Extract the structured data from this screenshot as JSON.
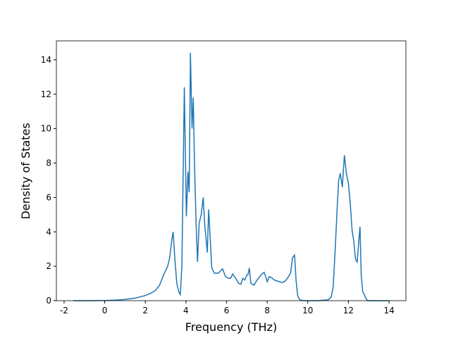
{
  "chart_data": {
    "type": "line",
    "x_label": "Frequency (THz)",
    "y_label": "Density of States",
    "x": [
      -1.55,
      -1,
      0,
      0.5,
      1,
      1.5,
      2,
      2.3,
      2.5,
      2.7,
      2.9,
      3.1,
      3.2,
      3.3,
      3.37,
      3.45,
      3.55,
      3.65,
      3.72,
      3.8,
      3.92,
      4.02,
      4.1,
      4.16,
      4.22,
      4.3,
      4.36,
      4.42,
      4.5,
      4.57,
      4.65,
      4.75,
      4.85,
      4.92,
      5.05,
      5.12,
      5.2,
      5.27,
      5.4,
      5.6,
      5.8,
      5.95,
      6.1,
      6.2,
      6.3,
      6.45,
      6.6,
      6.7,
      6.8,
      6.9,
      7.0,
      7.05,
      7.12,
      7.2,
      7.35,
      7.5,
      7.7,
      7.85,
      7.95,
      8.0,
      8.1,
      8.2,
      8.35,
      8.6,
      8.75,
      8.9,
      9.05,
      9.15,
      9.25,
      9.35,
      9.42,
      9.5,
      9.6,
      9.8,
      10.5,
      11.0,
      11.15,
      11.25,
      11.35,
      11.45,
      11.52,
      11.6,
      11.7,
      11.8,
      11.9,
      12.0,
      12.1,
      12.18,
      12.26,
      12.35,
      12.43,
      12.5,
      12.57,
      12.63,
      12.7,
      12.8,
      12.9,
      13.0,
      14.0
    ],
    "series": [
      {
        "color": "#1f77b4",
        "values": [
          0,
          0,
          0.01,
          0.03,
          0.07,
          0.15,
          0.3,
          0.45,
          0.6,
          0.9,
          1.5,
          2.0,
          2.5,
          3.5,
          4.0,
          2.5,
          1.0,
          0.5,
          0.35,
          2.0,
          12.4,
          4.9,
          7.5,
          6.3,
          14.4,
          10.0,
          11.8,
          8.0,
          4.5,
          2.25,
          4.5,
          5.0,
          6.0,
          4.5,
          2.8,
          5.3,
          3.5,
          1.9,
          1.6,
          1.6,
          1.85,
          1.4,
          1.3,
          1.3,
          1.55,
          1.3,
          1.0,
          0.95,
          1.3,
          1.2,
          1.5,
          1.5,
          1.9,
          1.0,
          0.9,
          1.2,
          1.5,
          1.65,
          1.3,
          1.1,
          1.4,
          1.35,
          1.2,
          1.1,
          1.05,
          1.15,
          1.4,
          1.6,
          2.5,
          2.65,
          1.2,
          0.3,
          0.05,
          0,
          0,
          0.05,
          0.2,
          0.8,
          3.0,
          5.5,
          7.0,
          7.4,
          6.6,
          8.45,
          7.4,
          6.8,
          5.5,
          4.1,
          3.5,
          2.4,
          2.25,
          3.3,
          4.3,
          1.5,
          0.55,
          0.3,
          0.05,
          0,
          0
        ]
      }
    ],
    "xlim": [
      -2.38,
      14.83
    ],
    "ylim": [
      0,
      15.1
    ],
    "xticks": [
      -2,
      0,
      2,
      4,
      6,
      8,
      10,
      12,
      14
    ],
    "yticks": [
      0,
      2,
      4,
      6,
      8,
      10,
      12,
      14
    ]
  }
}
